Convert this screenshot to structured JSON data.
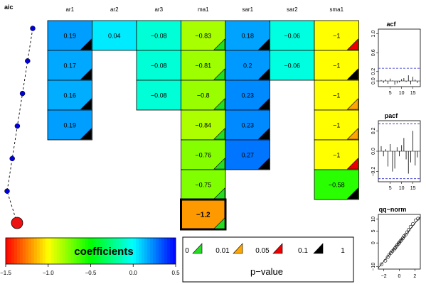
{
  "chart_data": {
    "type": "heatmap",
    "aic_label": "aic",
    "columns": [
      "ar1",
      "ar2",
      "ar3",
      "ma1",
      "sar1",
      "sar2",
      "sma1"
    ],
    "color_scale_range": [
      -1.5,
      0.5
    ],
    "models": [
      {
        "aic_rank": 1,
        "coefficients": [
          {
            "value": "0.19",
            "num": 0.19,
            "sig": "0.1"
          },
          {
            "value": "0.04",
            "num": 0.04,
            "sig": "1"
          },
          {
            "value": "−0.08",
            "num": -0.08,
            "sig": "1"
          },
          {
            "value": "−0.83",
            "num": -0.83,
            "sig": "0"
          },
          {
            "value": "0.18",
            "num": 0.18,
            "sig": "0.1"
          },
          {
            "value": "−0.06",
            "num": -0.06,
            "sig": "1"
          },
          {
            "value": "−1",
            "num": -1.0,
            "sig": "0.05"
          }
        ]
      },
      {
        "aic_rank": 2,
        "coefficients": [
          {
            "value": "0.17",
            "num": 0.17,
            "sig": "0.1"
          },
          null,
          {
            "value": "−0.08",
            "num": -0.08,
            "sig": "1"
          },
          {
            "value": "−0.81",
            "num": -0.81,
            "sig": "0"
          },
          {
            "value": "0.2",
            "num": 0.2,
            "sig": "0.1"
          },
          {
            "value": "−0.06",
            "num": -0.06,
            "sig": "1"
          },
          {
            "value": "−1",
            "num": -1.0,
            "sig": "0.1"
          }
        ]
      },
      {
        "aic_rank": 3,
        "coefficients": [
          {
            "value": "0.16",
            "num": 0.16,
            "sig": "0.1"
          },
          null,
          {
            "value": "−0.08",
            "num": -0.08,
            "sig": "1"
          },
          {
            "value": "−0.8",
            "num": -0.8,
            "sig": "0"
          },
          {
            "value": "0.23",
            "num": 0.23,
            "sig": "0.1"
          },
          null,
          {
            "value": "−1",
            "num": -1.0,
            "sig": "0.01"
          }
        ]
      },
      {
        "aic_rank": 4,
        "coefficients": [
          {
            "value": "0.19",
            "num": 0.19,
            "sig": "0.1"
          },
          null,
          null,
          {
            "value": "−0.84",
            "num": -0.84,
            "sig": "0"
          },
          {
            "value": "0.23",
            "num": 0.23,
            "sig": "0.1"
          },
          null,
          {
            "value": "−1",
            "num": -1.0,
            "sig": "0.01"
          }
        ]
      },
      {
        "aic_rank": 5,
        "coefficients": [
          null,
          null,
          null,
          {
            "value": "−0.76",
            "num": -0.76,
            "sig": "0"
          },
          {
            "value": "0.27",
            "num": 0.27,
            "sig": "0.1"
          },
          null,
          {
            "value": "−1",
            "num": -1.0,
            "sig": "0.05"
          }
        ]
      },
      {
        "aic_rank": 6,
        "coefficients": [
          null,
          null,
          null,
          {
            "value": "−0.75",
            "num": -0.75,
            "sig": "0"
          },
          null,
          null,
          {
            "value": "−0.58",
            "num": -0.58,
            "sig": "0.1"
          }
        ]
      },
      {
        "aic_rank": 7,
        "selected": true,
        "coefficients": [
          null,
          null,
          null,
          {
            "value": "−1.2",
            "num": -1.2,
            "sig": "0"
          },
          null,
          null,
          null
        ]
      }
    ],
    "colorbar": {
      "label": "coefficients",
      "ticks": [
        "−1.5",
        "−1.0",
        "−0.5",
        "0.0",
        "0.5"
      ]
    },
    "pvalue_legend": {
      "title": "p−value",
      "breaks": [
        "0",
        "0.01",
        "0.05",
        "0.1",
        "1"
      ],
      "colors": [
        "#22dd22",
        "#ffa500",
        "#ee0000",
        "#000000"
      ]
    },
    "acf": {
      "title": "acf",
      "lags": [
        1,
        2,
        3,
        4,
        5,
        6,
        7,
        8,
        9,
        10,
        11,
        12,
        13,
        14,
        15,
        16,
        17
      ],
      "values": [
        0.02,
        -0.04,
        0.03,
        -0.06,
        0.05,
        0.01,
        -0.08,
        -0.05,
        -0.03,
        0.04,
        0.06,
        -0.02,
        0.12,
        -0.07,
        0.09,
        0.03,
        -0.04
      ],
      "bound": 0.27,
      "ylim": [
        -0.12,
        1.1
      ],
      "yticks": [
        "0.0",
        "0.2",
        "0.6",
        "1.0"
      ],
      "xticks": [
        "5",
        "10",
        "15"
      ]
    },
    "pacf": {
      "title": "pacf",
      "lags": [
        1,
        2,
        3,
        4,
        5,
        6,
        7,
        8,
        9,
        10,
        11,
        12,
        13,
        14,
        15,
        16,
        17
      ],
      "values": [
        0.05,
        -0.05,
        0.02,
        -0.15,
        0.07,
        -0.2,
        -0.17,
        0.04,
        -0.05,
        0.06,
        0.13,
        -0.08,
        -0.22,
        -0.11,
        0.2,
        -0.14,
        -0.06
      ],
      "bound": 0.27,
      "ylim": [
        -0.3,
        0.3
      ],
      "yticks": [
        "−0.2",
        "0.0",
        "0.2"
      ],
      "xticks": [
        "5",
        "10",
        "15"
      ]
    },
    "qqnorm": {
      "title": "qq−norm",
      "points": [
        [
          -2.3,
          -9
        ],
        [
          -1.8,
          -7.5
        ],
        [
          -1.5,
          -6
        ],
        [
          -1.3,
          -5
        ],
        [
          -1.1,
          -4.2
        ],
        [
          -0.9,
          -3.5
        ],
        [
          -0.7,
          -2.8
        ],
        [
          -0.55,
          -2.2
        ],
        [
          -0.4,
          -1.5
        ],
        [
          -0.25,
          -0.8
        ],
        [
          -0.1,
          -0.3
        ],
        [
          0,
          0.2
        ],
        [
          0.15,
          0.8
        ],
        [
          0.3,
          1.4
        ],
        [
          0.45,
          2
        ],
        [
          0.6,
          2.8
        ],
        [
          0.8,
          3.5
        ],
        [
          1,
          4.5
        ],
        [
          1.2,
          5.5
        ],
        [
          1.45,
          6.8
        ],
        [
          1.75,
          8
        ],
        [
          2.1,
          9.5
        ],
        [
          2.4,
          10.2
        ]
      ],
      "xlim": [
        -2.7,
        2.7
      ],
      "ylim": [
        -11,
        12
      ],
      "xticks": [
        "−2",
        "0",
        "2"
      ],
      "yticks": [
        "−10",
        "0",
        "5",
        "10"
      ]
    }
  }
}
